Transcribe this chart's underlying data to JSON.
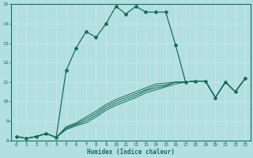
{
  "xlabel": "Humidex (Indice chaleur)",
  "background_color": "#b2e0e0",
  "grid_color": "#d0eaea",
  "line_color": "#1a6b5a",
  "xlim": [
    -0.5,
    23.5
  ],
  "ylim": [
    8,
    15
  ],
  "xticks": [
    0,
    1,
    2,
    3,
    4,
    5,
    6,
    7,
    8,
    9,
    10,
    11,
    12,
    13,
    14,
    15,
    16,
    17,
    18,
    19,
    20,
    21,
    22,
    23
  ],
  "yticks": [
    8,
    9,
    10,
    11,
    12,
    13,
    14,
    15
  ],
  "x": [
    0,
    1,
    2,
    3,
    4,
    5,
    6,
    7,
    8,
    9,
    10,
    11,
    12,
    13,
    14,
    15,
    16,
    17,
    18,
    19,
    20,
    21,
    22,
    23
  ],
  "main_y": [
    8.2,
    8.1,
    8.2,
    8.35,
    8.15,
    11.6,
    12.75,
    13.6,
    13.3,
    14.0,
    14.9,
    14.5,
    14.9,
    14.6,
    14.6,
    14.6,
    12.9,
    11.0,
    11.05,
    11.05,
    10.2,
    11.0,
    10.5,
    11.2
  ],
  "band_lines": [
    [
      8.2,
      8.1,
      8.2,
      8.35,
      8.15,
      8.55,
      8.75,
      8.9,
      9.2,
      9.55,
      9.8,
      10.0,
      10.2,
      10.45,
      10.6,
      10.75,
      10.9,
      11.0,
      11.05,
      11.05,
      10.2,
      11.0,
      10.5,
      11.2
    ],
    [
      8.2,
      8.1,
      8.2,
      8.35,
      8.15,
      8.6,
      8.8,
      9.0,
      9.3,
      9.65,
      9.9,
      10.1,
      10.3,
      10.55,
      10.7,
      10.8,
      11.0,
      11.0,
      11.05,
      11.05,
      10.2,
      11.0,
      10.5,
      11.2
    ],
    [
      8.2,
      8.1,
      8.2,
      8.35,
      8.15,
      8.65,
      8.85,
      9.1,
      9.4,
      9.75,
      10.0,
      10.2,
      10.4,
      10.6,
      10.8,
      10.85,
      11.0,
      11.0,
      11.05,
      11.05,
      10.2,
      11.0,
      10.5,
      11.2
    ],
    [
      8.2,
      8.1,
      8.2,
      8.35,
      8.15,
      8.7,
      8.9,
      9.2,
      9.5,
      9.85,
      10.1,
      10.3,
      10.5,
      10.7,
      10.9,
      10.95,
      11.0,
      11.0,
      11.05,
      11.05,
      10.2,
      11.0,
      10.5,
      11.2
    ]
  ]
}
